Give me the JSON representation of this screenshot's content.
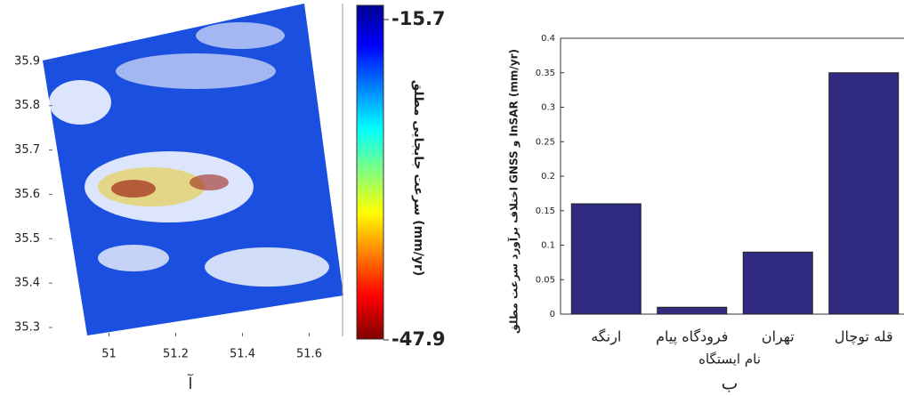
{
  "chart_data": [
    {
      "type": "map",
      "xlim": [
        50.82,
        51.7
      ],
      "xticks": [
        51,
        51.2,
        51.4,
        51.6
      ],
      "ylim": [
        35.28,
        36.03
      ],
      "yticks": [
        35.3,
        35.4,
        35.5,
        35.6,
        35.7,
        35.8,
        35.9
      ],
      "clim": [
        -47.9,
        -15.7
      ],
      "colorbar_ticks": [
        -47.9,
        -15.7
      ],
      "colorbar_label": "سرعت جابجایی مطلق (mm/yr)",
      "panel_label": "آ"
    },
    {
      "type": "bar",
      "categories": [
        "ارنگه",
        "فرودگاه پیام",
        "تهران",
        "قله توچال"
      ],
      "values": [
        0.16,
        0.01,
        0.09,
        0.35
      ],
      "color": "#302b80",
      "ylim": [
        0,
        0.4
      ],
      "yticks": [
        0,
        0.05,
        0.1,
        0.15,
        0.2,
        0.25,
        0.3,
        0.35,
        0.4
      ],
      "ylabel": "اختلاف برآورد سرعت مطلق GNSS و InSAR (mm/yr)",
      "xlabel": "نام ایستگاه",
      "panel_label": "ب"
    }
  ]
}
